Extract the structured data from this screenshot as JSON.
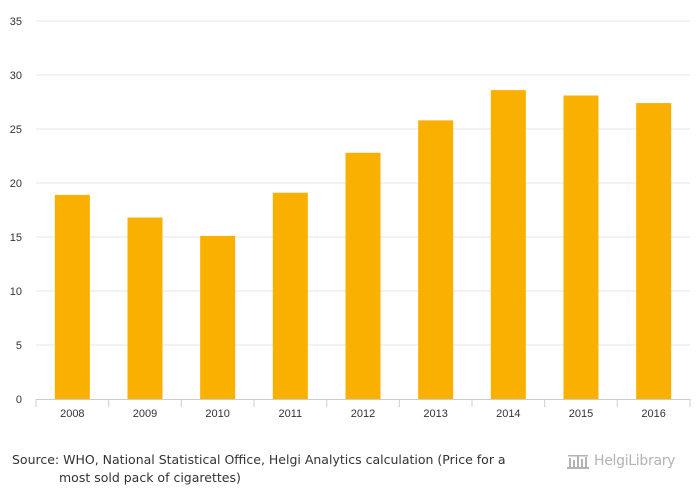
{
  "chart_data": {
    "type": "bar",
    "categories": [
      "2008",
      "2009",
      "2010",
      "2011",
      "2012",
      "2013",
      "2014",
      "2015",
      "2016"
    ],
    "values": [
      18.9,
      16.8,
      15.1,
      19.1,
      22.8,
      25.8,
      28.6,
      28.1,
      27.4
    ],
    "ylim": [
      0,
      35
    ],
    "yticks": [
      0,
      5,
      10,
      15,
      20,
      25,
      30,
      35
    ],
    "bar_color": "#f9b000",
    "grid": true,
    "grid_color": "#e6e6e6"
  },
  "footer": {
    "source_line1": "Source: WHO, National Statistical Office, Helgi Analytics calculation (Price for a",
    "source_line2": "most sold pack of cigarettes)",
    "logo_text": "HelgiLibrary"
  }
}
